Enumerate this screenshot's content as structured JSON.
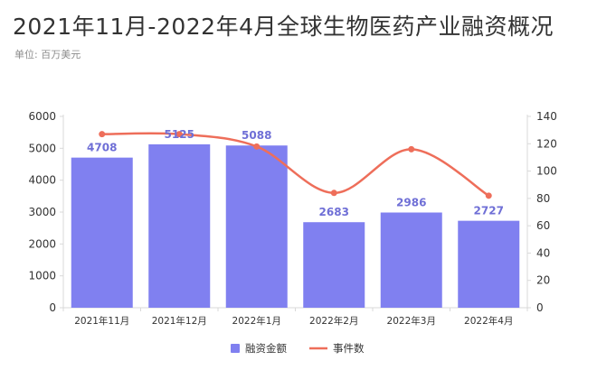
{
  "chart_data": {
    "type": "bar",
    "title": "2021年11月-2022年4月全球生物医药产业融资概况",
    "unit_label": "单位: 百万美元",
    "categories": [
      "2021年11月",
      "2021年12月",
      "2022年1月",
      "2022年2月",
      "2022年3月",
      "2022年4月"
    ],
    "series": [
      {
        "name": "融资金额",
        "type": "bar",
        "axis": "left",
        "color": "#8080f0",
        "label_color": "#6f6fd6",
        "values": [
          4708,
          5125,
          5088,
          2683,
          2986,
          2727
        ]
      },
      {
        "name": "事件数",
        "type": "line",
        "axis": "right",
        "color": "#ee6e5a",
        "values": [
          127,
          127,
          118,
          84,
          116,
          82
        ]
      }
    ],
    "y_left": {
      "min": 0,
      "max": 6000,
      "ticks": [
        0,
        1000,
        2000,
        3000,
        4000,
        5000,
        6000
      ]
    },
    "y_right": {
      "min": 0,
      "max": 140,
      "ticks": [
        0,
        20,
        40,
        60,
        80,
        100,
        120,
        140
      ]
    },
    "grid": false,
    "legend_position": "bottom-center"
  }
}
